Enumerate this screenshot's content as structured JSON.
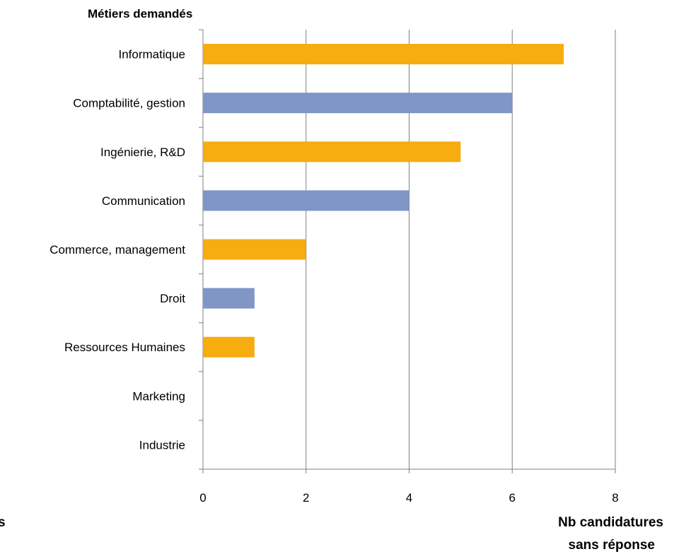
{
  "chart_data": {
    "type": "bar",
    "orientation": "horizontal",
    "title": "",
    "ylabel": "Métiers demandés",
    "xlabel": "Nb candidatures sans réponse",
    "xlabel_lines": [
      "Nb candidatures",
      "sans réponse"
    ],
    "left_clipped_text": "s",
    "categories": [
      "Informatique",
      "Comptabilité, gestion",
      "Ingénierie, R&D",
      "Communication",
      "Commerce, management",
      "Droit",
      "Ressources Humaines",
      "Marketing",
      "Industrie"
    ],
    "values": [
      7,
      6,
      5,
      4,
      2,
      1,
      1,
      0,
      0
    ],
    "bar_colors": [
      "#F7AC0F",
      "#7F96C7",
      "#F7AC0F",
      "#7F96C7",
      "#F7AC0F",
      "#7F96C7",
      "#F7AC0F",
      "#7F96C7",
      "#F7AC0F"
    ],
    "xlim": [
      0,
      8
    ],
    "xticks": [
      0,
      2,
      4,
      6,
      8
    ],
    "grid": "vertical",
    "legend": "none"
  },
  "colors": {
    "orange": "#F7AC0F",
    "blue": "#7F96C7",
    "grid": "#808080",
    "axis": "#808080"
  }
}
